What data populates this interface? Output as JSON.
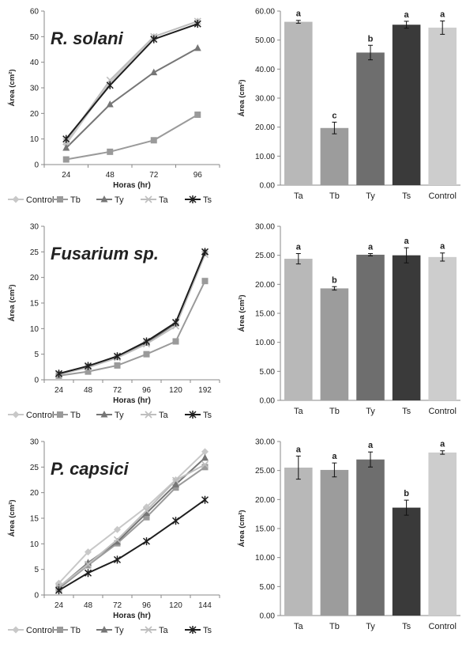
{
  "chart_data": [
    {
      "type": "line",
      "title": "R. solani",
      "xlabel": "Horas (hr)",
      "ylabel": "Área (cm²)",
      "categories": [
        "24",
        "48",
        "72",
        "96"
      ],
      "ylim": [
        0,
        60
      ],
      "yticks": [
        "0",
        "10",
        "20",
        "30",
        "40",
        "50",
        "60"
      ],
      "series": [
        {
          "name": "Control",
          "color": "#c8c8c8",
          "marker": "diamond",
          "values": [
            8,
            32,
            50,
            56
          ]
        },
        {
          "name": "Tb",
          "color": "#9a9a9a",
          "marker": "square",
          "values": [
            2,
            5,
            9.5,
            19.5
          ]
        },
        {
          "name": "Ty",
          "color": "#767676",
          "marker": "triangle",
          "values": [
            6.5,
            23.5,
            36,
            45.5
          ]
        },
        {
          "name": "Ta",
          "color": "#bebebe",
          "marker": "x",
          "values": [
            9,
            33,
            50,
            56
          ]
        },
        {
          "name": "Ts",
          "color": "#1e1e1e",
          "marker": "star",
          "values": [
            10,
            31,
            49,
            55
          ]
        }
      ]
    },
    {
      "type": "bar",
      "categories": [
        "Ta",
        "Tb",
        "Ty",
        "Ts",
        "Control"
      ],
      "ylabel": "Área (cm²)",
      "ylim": [
        0,
        60
      ],
      "yticks": [
        "0.00",
        "10.00",
        "20.00",
        "30.00",
        "40.00",
        "50.00",
        "60.00"
      ],
      "colors": [
        "#b8b8b8",
        "#9c9c9c",
        "#6e6e6e",
        "#3a3a3a",
        "#cdcdcd"
      ],
      "values": [
        56.3,
        19.7,
        45.7,
        55.3,
        54.3
      ],
      "errors": [
        0.5,
        2.0,
        2.5,
        1.2,
        2.3
      ],
      "letters": [
        "a",
        "c",
        "b",
        "a",
        "a"
      ]
    },
    {
      "type": "line",
      "title": "Fusarium sp.",
      "xlabel": "Horas (hr)",
      "ylabel": "Área (cm²)",
      "categories": [
        "24",
        "48",
        "72",
        "96",
        "120",
        "192"
      ],
      "ylim": [
        0,
        30
      ],
      "yticks": [
        "0",
        "5",
        "10",
        "15",
        "20",
        "25",
        "30"
      ],
      "series": [
        {
          "name": "Control",
          "color": "#c8c8c8",
          "marker": "diamond",
          "values": [
            1,
            2.5,
            4.5,
            7.5,
            11,
            25
          ]
        },
        {
          "name": "Tb",
          "color": "#9a9a9a",
          "marker": "square",
          "values": [
            0.8,
            1.6,
            2.8,
            5,
            7.5,
            19.3
          ]
        },
        {
          "name": "Ty",
          "color": "#767676",
          "marker": "triangle",
          "values": [
            1.2,
            2.6,
            4.5,
            7.2,
            11,
            25
          ]
        },
        {
          "name": "Ta",
          "color": "#bebebe",
          "marker": "x",
          "values": [
            1.1,
            2.4,
            4.3,
            7,
            10.5,
            24.5
          ]
        },
        {
          "name": "Ts",
          "color": "#1e1e1e",
          "marker": "star",
          "values": [
            1.2,
            2.7,
            4.6,
            7.5,
            11.2,
            25
          ]
        }
      ]
    },
    {
      "type": "bar",
      "categories": [
        "Ta",
        "Tb",
        "Ty",
        "Ts",
        "Control"
      ],
      "ylabel": "Área (cm²)",
      "ylim": [
        0,
        30
      ],
      "yticks": [
        "0.00",
        "5.00",
        "10.00",
        "15.00",
        "20.00",
        "25.00",
        "30.00"
      ],
      "colors": [
        "#b8b8b8",
        "#9c9c9c",
        "#6e6e6e",
        "#3a3a3a",
        "#cdcdcd"
      ],
      "values": [
        24.4,
        19.3,
        25.1,
        25.0,
        24.7
      ],
      "errors": [
        0.9,
        0.3,
        0.2,
        1.3,
        0.7
      ],
      "letters": [
        "a",
        "b",
        "a",
        "a",
        "a"
      ]
    },
    {
      "type": "line",
      "title": "P. capsici",
      "xlabel": "Horas (hr)",
      "ylabel": "Área (cm²)",
      "categories": [
        "24",
        "48",
        "72",
        "96",
        "120",
        "144"
      ],
      "ylim": [
        0,
        30
      ],
      "yticks": [
        "0",
        "5",
        "10",
        "15",
        "20",
        "25",
        "30"
      ],
      "series": [
        {
          "name": "Control",
          "color": "#c8c8c8",
          "marker": "diamond",
          "values": [
            2.3,
            8.4,
            12.8,
            17.2,
            22.5,
            28
          ]
        },
        {
          "name": "Tb",
          "color": "#9a9a9a",
          "marker": "square",
          "values": [
            1.2,
            5.8,
            10.1,
            15.2,
            21,
            25
          ]
        },
        {
          "name": "Ty",
          "color": "#767676",
          "marker": "triangle",
          "values": [
            1.5,
            6.3,
            10.4,
            16,
            21.6,
            26.8
          ]
        },
        {
          "name": "Ta",
          "color": "#bebebe",
          "marker": "x",
          "values": [
            1.6,
            6,
            10.8,
            16.5,
            22.4,
            25.5
          ]
        },
        {
          "name": "Ts",
          "color": "#1e1e1e",
          "marker": "star",
          "values": [
            0.9,
            4.3,
            6.9,
            10.5,
            14.5,
            18.6
          ]
        }
      ]
    },
    {
      "type": "bar",
      "categories": [
        "Ta",
        "Tb",
        "Ty",
        "Ts",
        "Control"
      ],
      "ylabel": "Área (cm²)",
      "ylim": [
        0,
        30
      ],
      "yticks": [
        "0.00",
        "5.00",
        "10.00",
        "15.00",
        "20.00",
        "25.00",
        "30.00"
      ],
      "colors": [
        "#b8b8b8",
        "#9c9c9c",
        "#6e6e6e",
        "#3a3a3a",
        "#cdcdcd"
      ],
      "values": [
        25.5,
        25.1,
        26.9,
        18.6,
        28.1
      ],
      "errors": [
        2.0,
        1.2,
        1.3,
        1.3,
        0.3
      ],
      "letters": [
        "a",
        "a",
        "a",
        "b",
        "a"
      ]
    }
  ]
}
